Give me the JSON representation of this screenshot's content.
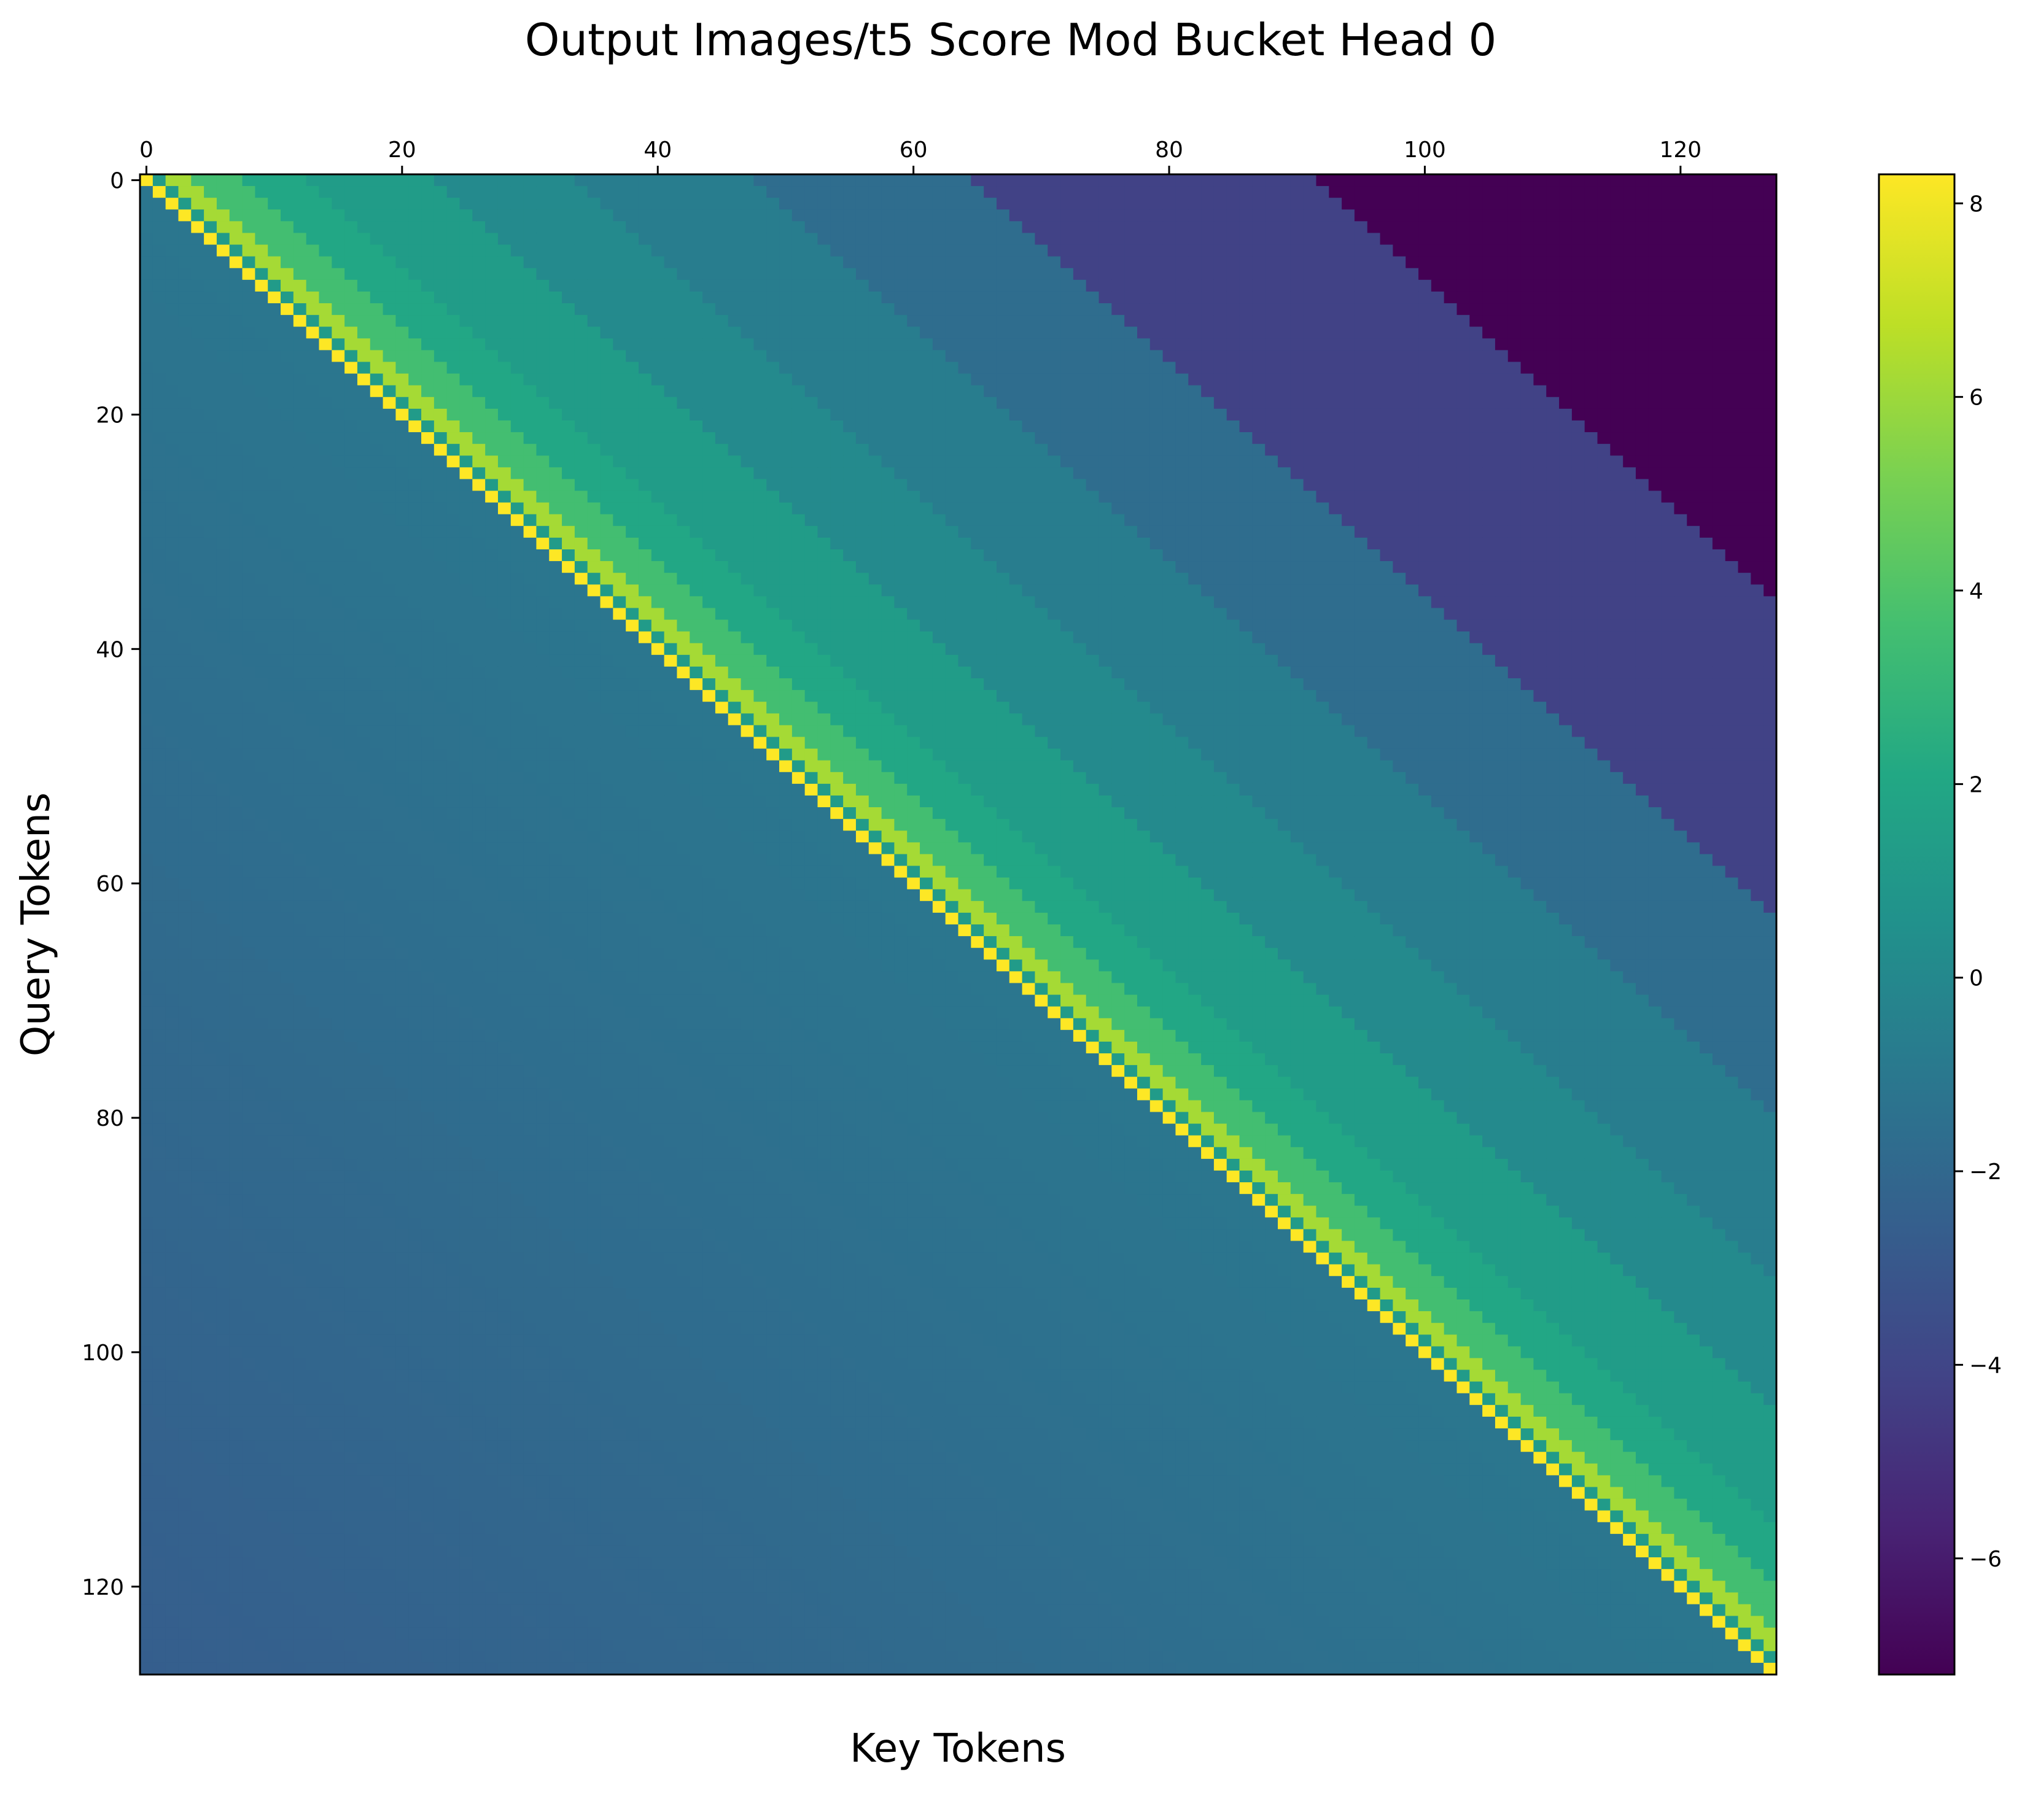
{
  "chart_data": {
    "type": "heatmap",
    "title": "Output Images/t5 Score Mod Bucket Head 0",
    "xlabel": "Key Tokens",
    "ylabel": "Query Tokens",
    "rows": 128,
    "cols": 128,
    "x_axis_position": "top",
    "x_ticks": [
      "0",
      "20",
      "40",
      "60",
      "80",
      "100",
      "120"
    ],
    "y_ticks": [
      "0",
      "20",
      "40",
      "60",
      "80",
      "100",
      "120"
    ],
    "colormap": "viridis",
    "colorbar": {
      "range": [
        -7.2,
        8.3
      ],
      "ticks": [
        "8",
        "6",
        "4",
        "2",
        "0",
        "−2",
        "−4",
        "−6"
      ],
      "tick_values": [
        8,
        6,
        4,
        2,
        0,
        -2,
        -4,
        -6
      ]
    },
    "value_model": {
      "description_of_cells": "value depends on key-query offset (k - q)",
      "diagonal": 8.3,
      "offset_1": 1.2,
      "upper_bands": [
        {
          "from_offset": 2,
          "to_offset": 3,
          "value": 6.2
        },
        {
          "from_offset": 4,
          "to_offset": 7,
          "value": 3.6
        },
        {
          "from_offset": 8,
          "to_offset": 12,
          "value": 2.0
        },
        {
          "from_offset": 13,
          "to_offset": 22,
          "value": 1.3
        },
        {
          "from_offset": 23,
          "to_offset": 33,
          "value": 0.1
        },
        {
          "from_offset": 34,
          "to_offset": 47,
          "value": -0.7
        },
        {
          "from_offset": 48,
          "to_offset": 64,
          "value": -1.7
        },
        {
          "from_offset": 65,
          "to_offset": 91,
          "value": -4.2
        },
        {
          "from_offset": 92,
          "to_offset": 127,
          "value": -7.2
        }
      ],
      "lower_start": -1.1,
      "lower_end": -2.6
    },
    "grid": false,
    "legend": "none"
  }
}
